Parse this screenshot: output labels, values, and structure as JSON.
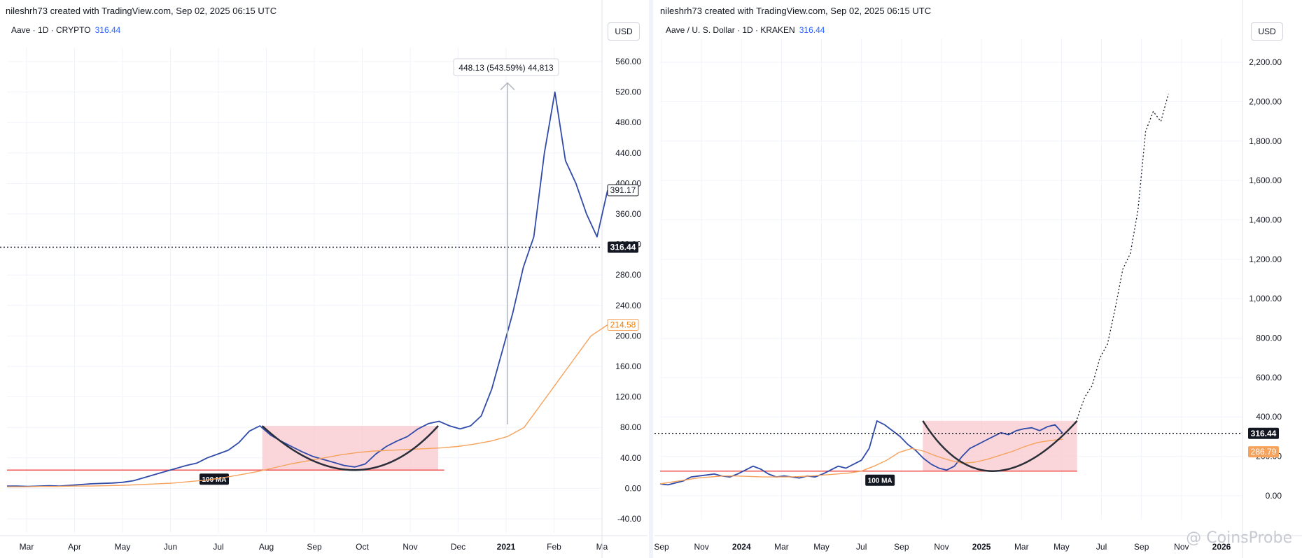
{
  "left": {
    "credit": "nileshrh73 created with TradingView.com, Sep 02, 2025 06:15 UTC",
    "symbol": "Aave · 1D · CRYPTO",
    "symbol_price": "316.44",
    "currency": "USD",
    "ma_label": "100 MA",
    "measure_label": "448.13 (543.59%) 44,813",
    "last_price_label": "391.17",
    "ma_price_label": "214.58",
    "hline_price_label": "316.44"
  },
  "right": {
    "credit": "nileshrh73 created with TradingView.com, Sep 02, 2025 06:15 UTC",
    "symbol": "Aave / U. S. Dollar · 1D · KRAKEN",
    "symbol_price": "316.44",
    "currency": "USD",
    "ma_label": "100 MA",
    "last_price_label": "316.44",
    "ma_price_label": "286.79"
  },
  "watermark": "@ CoinsProbe",
  "colors": {
    "price_line": "#2f4aa8",
    "ma_line": "#f5a25d",
    "support_line": "#ef5350",
    "cup_fill": "#f8c8cd",
    "cup_curve": "#2a2e39",
    "grid": "#f0f3fa"
  },
  "chart_data": [
    {
      "type": "line",
      "ylim": [
        -40,
        560
      ],
      "y_ticks": [
        "560.00",
        "520.00",
        "480.00",
        "440.00",
        "400.00",
        "360.00",
        "320.00",
        "280.00",
        "240.00",
        "200.00",
        "160.00",
        "120.00",
        "80.00",
        "40.00",
        "0.00",
        "-40.00"
      ],
      "x_ticks": [
        "Mar",
        "Apr",
        "May",
        "Jun",
        "Jul",
        "Aug",
        "Sep",
        "Oct",
        "Nov",
        "Dec",
        "2021",
        "Feb",
        "Ma"
      ],
      "series": [
        {
          "values": [
            3,
            3,
            2.5,
            3,
            3.5,
            3,
            4,
            5,
            6,
            6.5,
            7,
            8,
            10,
            14,
            18,
            22,
            26,
            30,
            33,
            40,
            45,
            50,
            60,
            75,
            82,
            70,
            62,
            55,
            48,
            42,
            38,
            34,
            30,
            28,
            32,
            45,
            55,
            62,
            68,
            78,
            85,
            88,
            82,
            78,
            82,
            95,
            130,
            180,
            230,
            290,
            330,
            440,
            520,
            430,
            400,
            360,
            330,
            391.17
          ]
        },
        {
          "values": [
            2,
            2,
            2.5,
            2.5,
            3,
            3,
            3.5,
            4,
            5,
            6,
            7,
            9,
            11,
            14,
            18,
            22,
            27,
            32,
            36,
            40,
            44,
            47,
            49,
            50,
            51,
            52,
            53,
            55,
            58,
            62,
            68,
            80,
            110,
            140,
            170,
            200,
            214.58
          ]
        }
      ],
      "annotations": {
        "support_level": 24,
        "cup_rim": 82,
        "horizontal_line": 316.44,
        "measure_from": 84,
        "measure_to": 532
      }
    },
    {
      "type": "line",
      "ylim": [
        -50,
        2250
      ],
      "y_ticks": [
        "2,200.00",
        "2,000.00",
        "1,800.00",
        "1,600.00",
        "1,400.00",
        "1,200.00",
        "1,000.00",
        "800.00",
        "600.00",
        "400.00",
        "200.00",
        "0.00"
      ],
      "x_ticks": [
        "Sep",
        "Nov",
        "2024",
        "Mar",
        "May",
        "Jul",
        "Sep",
        "Nov",
        "2025",
        "Mar",
        "May",
        "Jul",
        "Sep",
        "Nov",
        "2026"
      ],
      "series": [
        {
          "values": [
            60,
            55,
            65,
            75,
            95,
            100,
            105,
            110,
            100,
            95,
            110,
            130,
            150,
            135,
            110,
            95,
            100,
            95,
            90,
            100,
            95,
            110,
            130,
            150,
            140,
            160,
            180,
            240,
            380,
            360,
            330,
            300,
            260,
            230,
            190,
            160,
            140,
            130,
            150,
            200,
            240,
            260,
            280,
            300,
            320,
            310,
            330,
            340,
            345,
            330,
            350,
            360,
            316.44
          ]
        },
        {
          "values": [
            60,
            70,
            80,
            90,
            95,
            100,
            100,
            98,
            96,
            95,
            95,
            97,
            100,
            105,
            110,
            115,
            125,
            150,
            180,
            220,
            240,
            225,
            200,
            180,
            165,
            170,
            185,
            205,
            225,
            250,
            270,
            280,
            286.79
          ]
        },
        {
          "values": [
            390,
            500,
            560,
            700,
            770,
            950,
            1150,
            1230,
            1450,
            1850,
            1950,
            1900,
            2040
          ]
        }
      ],
      "annotations": {
        "support_level": 125,
        "cup_rim": 380,
        "horizontal_line": 316.44
      }
    }
  ]
}
